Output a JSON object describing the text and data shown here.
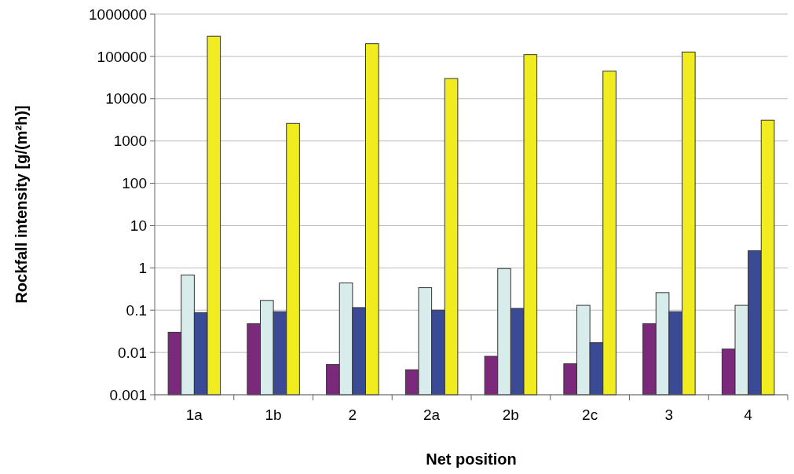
{
  "chart_data": {
    "type": "bar",
    "xlabel": "Net position",
    "ylabel": "Rockfall intensity [g/(m²h)]",
    "categories": [
      "1a",
      "1b",
      "2",
      "2a",
      "2b",
      "2c",
      "3",
      "4"
    ],
    "series": [
      {
        "color": "#7b2a7b",
        "values": [
          0.03,
          0.048,
          0.0052,
          0.0039,
          0.0081,
          0.0054,
          0.048,
          0.012
        ]
      },
      {
        "color": "#d9ecec",
        "values": [
          0.68,
          0.17,
          0.44,
          0.34,
          0.96,
          0.13,
          0.26,
          0.13
        ]
      },
      {
        "color": "#3a4a94",
        "values": [
          0.087,
          0.092,
          0.115,
          0.1,
          0.11,
          0.017,
          0.092,
          2.55
        ]
      },
      {
        "color": "#f0ec20",
        "values": [
          300000,
          2600,
          200000,
          30000,
          110000,
          45000,
          127000,
          3100
        ]
      }
    ],
    "log": true,
    "ylim": [
      0.001,
      1000000
    ],
    "yticks": [
      {
        "value": 0.001,
        "label": "0.001"
      },
      {
        "value": 0.01,
        "label": "0.01"
      },
      {
        "value": 0.1,
        "label": "0.1"
      },
      {
        "value": 1,
        "label": "1"
      },
      {
        "value": 10,
        "label": "10"
      },
      {
        "value": 100,
        "label": "100"
      },
      {
        "value": 1000,
        "label": "1000"
      },
      {
        "value": 10000,
        "label": "10000"
      },
      {
        "value": 100000,
        "label": "100000"
      },
      {
        "value": 1000000,
        "label": "1000000"
      }
    ],
    "grid": "y"
  }
}
